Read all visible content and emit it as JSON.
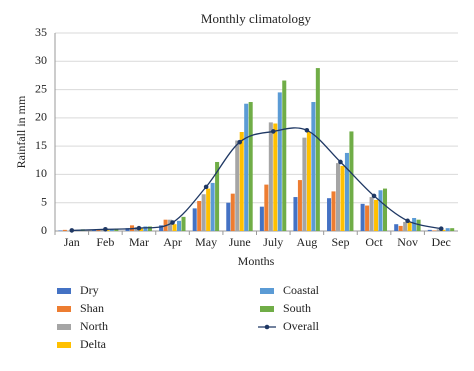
{
  "chart_data": {
    "type": "bar",
    "title": "Monthly climatology",
    "x_label": "Months",
    "y_label": "Rainfall in mm",
    "categories": [
      "Jan",
      "Feb",
      "Mar",
      "Apr",
      "May",
      "June",
      "July",
      "Aug",
      "Sep",
      "Oct",
      "Nov",
      "Dec"
    ],
    "series": [
      {
        "name": "Dry",
        "color": "#4472c4",
        "values": [
          0.1,
          0.2,
          0.5,
          1.0,
          4.0,
          5.0,
          4.3,
          6.0,
          5.8,
          4.8,
          1.2,
          0.2
        ]
      },
      {
        "name": "Shan",
        "color": "#ed7d31",
        "values": [
          0.2,
          0.3,
          1.0,
          2.0,
          5.3,
          6.6,
          8.2,
          9.0,
          7.0,
          4.5,
          0.9,
          0.1
        ]
      },
      {
        "name": "North",
        "color": "#a5a5a5",
        "values": [
          0.1,
          0.2,
          0.7,
          2.0,
          6.5,
          16.0,
          19.2,
          16.5,
          12.0,
          6.0,
          1.6,
          0.3
        ]
      },
      {
        "name": "Delta",
        "color": "#ffc000",
        "values": [
          0.1,
          0.2,
          0.5,
          1.2,
          7.5,
          17.5,
          19.0,
          17.5,
          11.5,
          5.5,
          1.5,
          0.2
        ]
      },
      {
        "name": "Coastal",
        "color": "#5b9bd5",
        "values": [
          0.2,
          0.3,
          0.8,
          1.8,
          8.5,
          22.5,
          24.5,
          22.8,
          13.8,
          7.2,
          2.3,
          0.5
        ]
      },
      {
        "name": "South",
        "color": "#70ad47",
        "values": [
          0.3,
          0.4,
          0.8,
          2.5,
          12.2,
          22.8,
          26.6,
          28.8,
          17.6,
          7.5,
          2.0,
          0.5
        ]
      },
      {
        "name": "Overall",
        "color": "#1f3864",
        "type": "line",
        "values": [
          0.1,
          0.3,
          0.5,
          1.5,
          7.8,
          15.7,
          17.6,
          17.8,
          12.2,
          6.2,
          1.8,
          0.4
        ]
      }
    ],
    "ylim": [
      0,
      35
    ],
    "yticks": [
      0,
      5,
      10,
      15,
      20,
      25,
      30,
      35
    ],
    "grid": true
  }
}
